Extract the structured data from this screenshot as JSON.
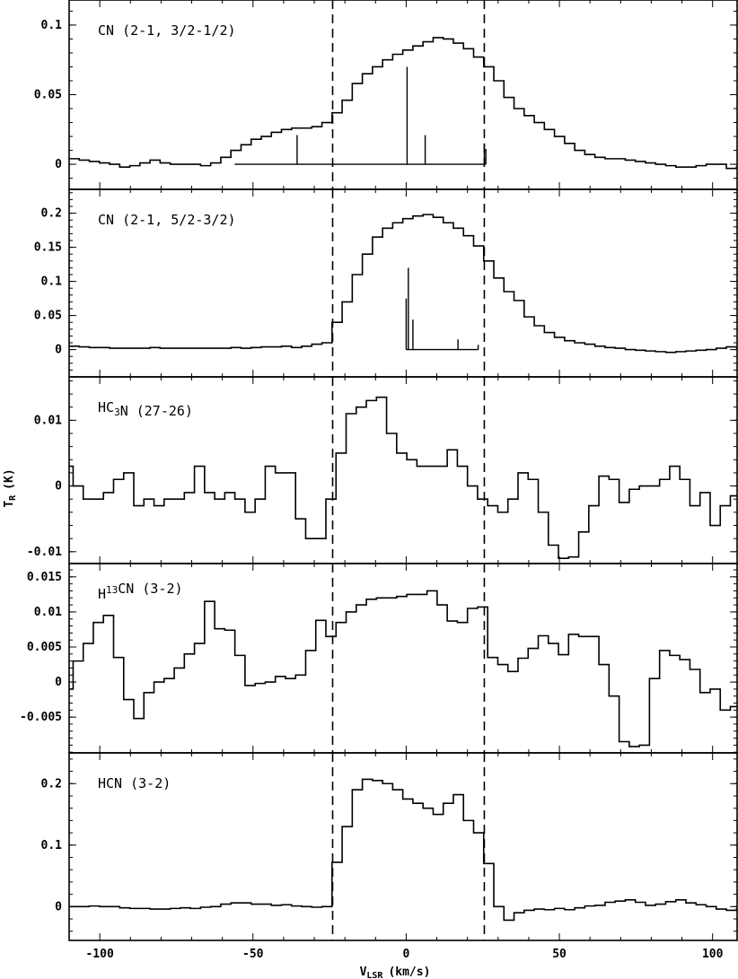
{
  "figure": {
    "xlabel_prefix": "V",
    "xlabel_sub": "LSR",
    "xlabel_suffix": "(km/s)",
    "ylabel_prefix": "T",
    "ylabel_sub": "R",
    "ylabel_suffix": "(K)"
  },
  "chart_data": [
    {
      "type": "line",
      "label": [
        {
          "t": "CN  (2-1, 3/2-1/2)"
        }
      ],
      "xlim": [
        -110,
        108
      ],
      "ylim": [
        -0.018,
        0.118
      ],
      "yticks": [
        0,
        0.05,
        0.1
      ],
      "yticklabels": [
        "0",
        "0.05",
        "0.1"
      ],
      "vlines": [
        -24,
        25.5
      ],
      "x_start": -110,
      "bin": 3.3,
      "values": [
        0.004,
        0.003,
        0.002,
        0.001,
        0.0,
        -0.002,
        -0.001,
        0.001,
        0.003,
        0.001,
        0.0,
        0.0,
        0.0,
        -0.001,
        0.001,
        0.005,
        0.01,
        0.014,
        0.018,
        0.02,
        0.023,
        0.025,
        0.026,
        0.026,
        0.027,
        0.03,
        0.037,
        0.046,
        0.058,
        0.065,
        0.07,
        0.075,
        0.079,
        0.082,
        0.085,
        0.088,
        0.091,
        0.09,
        0.087,
        0.083,
        0.077,
        0.07,
        0.06,
        0.048,
        0.04,
        0.035,
        0.03,
        0.025,
        0.02,
        0.015,
        0.01,
        0.007,
        0.005,
        0.004,
        0.004,
        0.003,
        0.002,
        0.001,
        0.0,
        -0.001,
        -0.002,
        -0.002,
        -0.001,
        0.0,
        0.0,
        -0.003,
        -0.002
      ],
      "stick_baseline": [
        -56,
        26
      ],
      "sticks": [
        [
          -35.6,
          0.021
        ],
        [
          0.3,
          0.07
        ],
        [
          6.2,
          0.021
        ],
        [
          25.5,
          0.015
        ],
        [
          26,
          0.011
        ]
      ]
    },
    {
      "type": "line",
      "label": [
        {
          "t": "CN  (2-1, 5/2-3/2)"
        }
      ],
      "xlim": [
        -110,
        108
      ],
      "ylim": [
        -0.04,
        0.235
      ],
      "yticks": [
        0,
        0.05,
        0.1,
        0.15,
        0.2
      ],
      "yticklabels": [
        "0",
        "0.05",
        "0.1",
        "0.15",
        "0.2"
      ],
      "vlines": [
        -24,
        25.5
      ],
      "x_start": -110,
      "bin": 3.3,
      "values": [
        0.005,
        0.004,
        0.003,
        0.003,
        0.002,
        0.002,
        0.002,
        0.002,
        0.003,
        0.002,
        0.002,
        0.002,
        0.002,
        0.002,
        0.002,
        0.002,
        0.003,
        0.002,
        0.003,
        0.004,
        0.004,
        0.005,
        0.003,
        0.005,
        0.008,
        0.01,
        0.04,
        0.07,
        0.11,
        0.14,
        0.165,
        0.178,
        0.186,
        0.192,
        0.196,
        0.198,
        0.194,
        0.186,
        0.178,
        0.167,
        0.152,
        0.13,
        0.105,
        0.085,
        0.072,
        0.048,
        0.035,
        0.025,
        0.018,
        0.013,
        0.01,
        0.008,
        0.005,
        0.003,
        0.002,
        0.0,
        -0.001,
        -0.002,
        -0.003,
        -0.004,
        -0.003,
        -0.002,
        -0.001,
        0.0,
        0.002,
        0.004,
        0.003
      ],
      "stick_baseline": [
        0,
        23.5
      ],
      "sticks": [
        [
          0,
          0.075
        ],
        [
          0.7,
          0.12
        ],
        [
          2.2,
          0.044
        ],
        [
          16.9,
          0.015
        ],
        [
          23.5,
          0.007
        ]
      ]
    },
    {
      "type": "line",
      "label": [
        {
          "t": "HC"
        },
        {
          "t": "3",
          "sub": true
        },
        {
          "t": "N  (27-26)"
        }
      ],
      "xlim": [
        -110,
        108
      ],
      "ylim": [
        -0.0118,
        0.0166
      ],
      "yticks": [
        -0.01,
        0,
        0.01
      ],
      "yticklabels": [
        "-0.01",
        "0",
        "0.01"
      ],
      "vlines": [
        -24,
        25.5
      ],
      "x_start": -112,
      "bin": 3.3,
      "values": [
        0.003,
        0.0,
        -0.002,
        -0.002,
        -0.001,
        0.001,
        0.002,
        -0.003,
        -0.002,
        -0.003,
        -0.002,
        -0.002,
        -0.001,
        0.003,
        -0.001,
        -0.002,
        -0.001,
        -0.002,
        -0.004,
        -0.002,
        0.003,
        0.002,
        0.002,
        -0.005,
        -0.008,
        -0.008,
        -0.002,
        0.005,
        0.011,
        0.012,
        0.013,
        0.0135,
        0.008,
        0.005,
        0.004,
        0.003,
        0.003,
        0.003,
        0.0055,
        0.003,
        0.0,
        -0.002,
        -0.003,
        -0.004,
        -0.002,
        0.002,
        0.001,
        -0.004,
        -0.009,
        -0.011,
        -0.0108,
        -0.007,
        -0.003,
        0.0015,
        0.001,
        -0.0025,
        -0.0005,
        0.0,
        0.0,
        0.001,
        0.003,
        0.001,
        -0.003,
        -0.001,
        -0.006,
        -0.003,
        -0.0015
      ],
      "sticks": []
    },
    {
      "type": "line",
      "label": [
        {
          "t": "H"
        },
        {
          "t": "13",
          "sup": true
        },
        {
          "t": "CN  (3-2)"
        }
      ],
      "xlim": [
        -110,
        108
      ],
      "ylim": [
        -0.0101,
        0.0169
      ],
      "yticks": [
        -0.005,
        0,
        0.005,
        0.01,
        0.015
      ],
      "yticklabels": [
        "-0.005",
        "0",
        "0.005",
        "0.01",
        "0.015"
      ],
      "vlines": [
        -24,
        25.5
      ],
      "x_start": -112,
      "bin": 3.3,
      "values": [
        -0.001,
        0.003,
        0.0055,
        0.0085,
        0.0095,
        0.0035,
        -0.0025,
        -0.0052,
        -0.0015,
        0.0,
        0.0005,
        0.002,
        0.004,
        0.0055,
        0.0115,
        0.0076,
        0.0074,
        0.0038,
        -0.0005,
        -0.0002,
        0.0,
        0.0008,
        0.0005,
        0.001,
        0.0045,
        0.0088,
        0.0065,
        0.0085,
        0.01,
        0.011,
        0.0118,
        0.012,
        0.012,
        0.0122,
        0.0125,
        0.0125,
        0.013,
        0.011,
        0.0087,
        0.0085,
        0.0105,
        0.0107,
        0.0035,
        0.0025,
        0.0015,
        0.0034,
        0.0048,
        0.0066,
        0.0055,
        0.0039,
        0.0068,
        0.0065,
        0.0065,
        0.0025,
        -0.002,
        -0.0085,
        -0.0092,
        -0.009,
        0.0005,
        0.0045,
        0.0038,
        0.0032,
        0.0018,
        -0.0015,
        -0.001,
        -0.004,
        -0.0035
      ],
      "sticks": []
    },
    {
      "type": "line",
      "label": [
        {
          "t": "HCN  (3-2)"
        }
      ],
      "xlim": [
        -110,
        108
      ],
      "ylim": [
        -0.055,
        0.25
      ],
      "yticks": [
        0,
        0.1,
        0.2
      ],
      "yticklabels": [
        "0",
        "0.1",
        "0.2"
      ],
      "vlines": [
        -24,
        25.5
      ],
      "x_start": -110,
      "bin": 3.3,
      "values": [
        0.0,
        0.0,
        0.001,
        0.0,
        0.0,
        -0.002,
        -0.003,
        -0.003,
        -0.004,
        -0.004,
        -0.003,
        -0.002,
        -0.003,
        -0.001,
        0.0,
        0.004,
        0.006,
        0.006,
        0.004,
        0.004,
        0.002,
        0.003,
        0.001,
        0.0,
        -0.001,
        0.0,
        0.072,
        0.13,
        0.19,
        0.207,
        0.205,
        0.2,
        0.19,
        0.175,
        0.168,
        0.16,
        0.15,
        0.168,
        0.182,
        0.14,
        0.12,
        0.07,
        0.0,
        -0.022,
        -0.01,
        -0.006,
        -0.004,
        -0.005,
        -0.003,
        -0.005,
        -0.002,
        0.001,
        0.002,
        0.007,
        0.009,
        0.011,
        0.007,
        0.002,
        0.004,
        0.008,
        0.011,
        0.006,
        0.003,
        0.0,
        -0.004,
        -0.006,
        -0.004
      ],
      "sticks": []
    }
  ],
  "xaxis": {
    "ticks": [
      -100,
      -50,
      0,
      50,
      100
    ],
    "ticklabels": [
      "-100",
      "-50",
      "0",
      "50",
      "100"
    ]
  }
}
